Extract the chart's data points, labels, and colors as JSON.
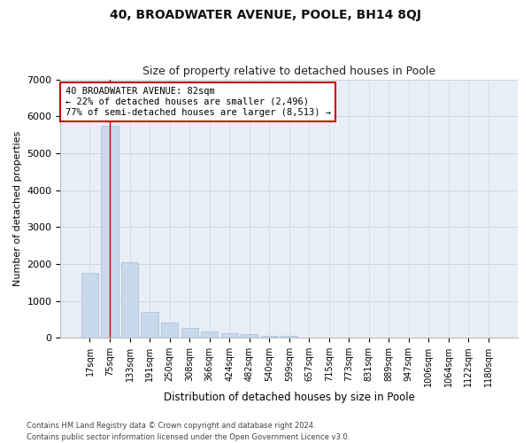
{
  "title": "40, BROADWATER AVENUE, POOLE, BH14 8QJ",
  "subtitle": "Size of property relative to detached houses in Poole",
  "xlabel": "Distribution of detached houses by size in Poole",
  "ylabel": "Number of detached properties",
  "footnote1": "Contains HM Land Registry data © Crown copyright and database right 2024.",
  "footnote2": "Contains public sector information licensed under the Open Government Licence v3.0.",
  "categories": [
    "17sqm",
    "75sqm",
    "133sqm",
    "191sqm",
    "250sqm",
    "308sqm",
    "366sqm",
    "424sqm",
    "482sqm",
    "540sqm",
    "599sqm",
    "657sqm",
    "715sqm",
    "773sqm",
    "831sqm",
    "889sqm",
    "947sqm",
    "1006sqm",
    "1064sqm",
    "1122sqm",
    "1180sqm"
  ],
  "values": [
    1750,
    5750,
    2050,
    700,
    425,
    275,
    175,
    120,
    90,
    65,
    50,
    0,
    0,
    0,
    0,
    0,
    0,
    0,
    0,
    0,
    0
  ],
  "bar_color": "#c9d9ec",
  "bar_edge_color": "#a8bdd4",
  "grid_color": "#cdd5e3",
  "background_color": "#e8eef6",
  "annotation_box_color": "#ffffff",
  "annotation_box_edge": "#cc0000",
  "vline_color": "#cc0000",
  "vline_x": 1.0,
  "annotation_title": "40 BROADWATER AVENUE: 82sqm",
  "annotation_line1": "← 22% of detached houses are smaller (2,496)",
  "annotation_line2": "77% of semi-detached houses are larger (8,513) →",
  "ylim": [
    0,
    7000
  ],
  "yticks": [
    0,
    1000,
    2000,
    3000,
    4000,
    5000,
    6000,
    7000
  ],
  "figsize": [
    6.0,
    5.0
  ],
  "dpi": 100
}
